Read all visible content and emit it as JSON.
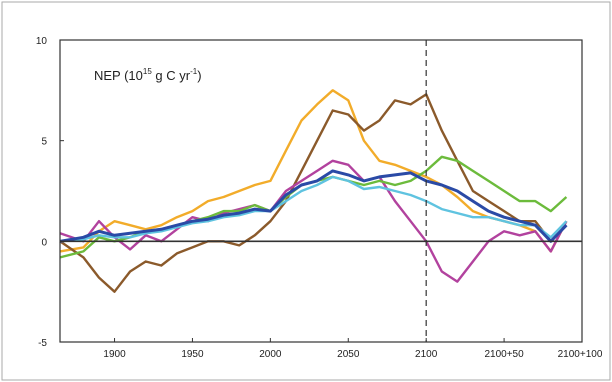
{
  "chart_data": {
    "type": "line",
    "title": "NEP (10",
    "title_exponent": "15",
    "title_rest": " g C yr",
    "title_unit_exponent": "-1",
    "title_close": ")",
    "xlabel": "",
    "ylabel": "",
    "xlim": [
      1865,
      2200
    ],
    "ylim": [
      -5,
      10
    ],
    "x_ticks": [
      {
        "value": 1900,
        "label": "1900"
      },
      {
        "value": 1950,
        "label": "1950"
      },
      {
        "value": 2000,
        "label": "2000"
      },
      {
        "value": 2050,
        "label": "2050"
      },
      {
        "value": 2100,
        "label": "2100"
      },
      {
        "value": 2150,
        "label": "2100+50"
      },
      {
        "value": 2200,
        "label": "2100+100"
      }
    ],
    "y_ticks": [
      {
        "value": -5,
        "label": "-5"
      },
      {
        "value": 0,
        "label": "0"
      },
      {
        "value": 5,
        "label": "5"
      },
      {
        "value": 10,
        "label": "10"
      }
    ],
    "reference_lines": {
      "zero_line": 0,
      "dashed_vertical_x": 2100
    },
    "grid": false,
    "legend": "none",
    "colors": {
      "frame": "#333333",
      "zero_line": "#333333",
      "dashed_line": "#333333",
      "outer_border": "#aaaaaa"
    },
    "series": [
      {
        "color": "#f2ac2a",
        "x": [
          1865,
          1880,
          1890,
          1900,
          1910,
          1920,
          1930,
          1940,
          1950,
          1960,
          1970,
          1980,
          1990,
          2000,
          2010,
          2020,
          2030,
          2040,
          2050,
          2060,
          2070,
          2080,
          2090,
          2100,
          2110,
          2120,
          2130,
          2140,
          2150,
          2160,
          2170,
          2180,
          2190
        ],
        "y": [
          -0.5,
          -0.3,
          0.5,
          1.0,
          0.8,
          0.6,
          0.8,
          1.2,
          1.5,
          2.0,
          2.2,
          2.5,
          2.8,
          3.0,
          4.5,
          6.0,
          6.8,
          7.5,
          7.0,
          5.0,
          4.0,
          3.8,
          3.5,
          3.2,
          2.8,
          2.2,
          1.5,
          1.2,
          1.0,
          0.8,
          0.5,
          -0.5,
          1.0
        ]
      },
      {
        "color": "#8b5a2b",
        "x": [
          1865,
          1880,
          1890,
          1900,
          1910,
          1920,
          1930,
          1940,
          1950,
          1960,
          1970,
          1980,
          1990,
          2000,
          2010,
          2020,
          2030,
          2040,
          2050,
          2060,
          2070,
          2080,
          2090,
          2100,
          2110,
          2120,
          2130,
          2140,
          2150,
          2160,
          2170,
          2180,
          2190
        ],
        "y": [
          0.0,
          -0.8,
          -1.8,
          -2.5,
          -1.5,
          -1.0,
          -1.2,
          -0.6,
          -0.3,
          0.0,
          0.0,
          -0.2,
          0.3,
          1.0,
          2.0,
          3.5,
          5.0,
          6.5,
          6.3,
          5.5,
          6.0,
          7.0,
          6.8,
          7.3,
          5.5,
          4.0,
          2.5,
          2.0,
          1.5,
          1.0,
          1.0,
          0.0,
          0.8
        ]
      },
      {
        "color": "#b2429e",
        "x": [
          1865,
          1880,
          1890,
          1900,
          1910,
          1920,
          1930,
          1940,
          1950,
          1960,
          1970,
          1980,
          1990,
          2000,
          2010,
          2020,
          2030,
          2040,
          2050,
          2060,
          2070,
          2080,
          2090,
          2100,
          2110,
          2120,
          2130,
          2140,
          2150,
          2160,
          2170,
          2180,
          2190
        ],
        "y": [
          0.4,
          0.0,
          1.0,
          0.2,
          -0.4,
          0.3,
          0.0,
          0.6,
          1.2,
          1.0,
          1.4,
          1.6,
          1.8,
          1.5,
          2.5,
          3.0,
          3.5,
          4.0,
          3.8,
          3.0,
          3.2,
          2.0,
          1.0,
          0.0,
          -1.5,
          -2.0,
          -1.0,
          0.0,
          0.5,
          0.3,
          0.5,
          -0.5,
          1.0
        ]
      },
      {
        "color": "#6cbb3c",
        "x": [
          1865,
          1880,
          1890,
          1900,
          1910,
          1920,
          1930,
          1940,
          1950,
          1960,
          1970,
          1980,
          1990,
          2000,
          2010,
          2020,
          2030,
          2040,
          2050,
          2060,
          2070,
          2080,
          2090,
          2100,
          2110,
          2120,
          2130,
          2140,
          2150,
          2160,
          2170,
          2180,
          2190
        ],
        "y": [
          -0.8,
          -0.5,
          0.2,
          0.0,
          0.2,
          0.5,
          0.6,
          0.8,
          1.0,
          1.2,
          1.5,
          1.5,
          1.8,
          1.5,
          2.2,
          2.8,
          3.0,
          3.2,
          3.0,
          2.8,
          3.0,
          2.8,
          3.0,
          3.5,
          4.2,
          4.0,
          3.5,
          3.0,
          2.5,
          2.0,
          2.0,
          1.5,
          2.2
        ]
      },
      {
        "color": "#5fc3e0",
        "x": [
          1865,
          1880,
          1890,
          1900,
          1910,
          1920,
          1930,
          1940,
          1950,
          1960,
          1970,
          1980,
          1990,
          2000,
          2010,
          2020,
          2030,
          2040,
          2050,
          2060,
          2070,
          2080,
          2090,
          2100,
          2110,
          2120,
          2130,
          2140,
          2150,
          2160,
          2170,
          2180,
          2190
        ],
        "y": [
          0.0,
          0.1,
          0.3,
          0.2,
          0.2,
          0.4,
          0.5,
          0.7,
          0.9,
          1.0,
          1.2,
          1.3,
          1.5,
          1.5,
          2.0,
          2.5,
          2.8,
          3.2,
          3.0,
          2.6,
          2.7,
          2.5,
          2.3,
          2.0,
          1.6,
          1.4,
          1.2,
          1.2,
          1.0,
          0.8,
          0.8,
          0.2,
          1.0
        ]
      },
      {
        "color": "#2a4aa6",
        "x": [
          1865,
          1880,
          1890,
          1900,
          1910,
          1920,
          1930,
          1940,
          1950,
          1960,
          1970,
          1980,
          1990,
          2000,
          2010,
          2020,
          2030,
          2040,
          2050,
          2060,
          2070,
          2080,
          2090,
          2100,
          2110,
          2120,
          2130,
          2140,
          2150,
          2160,
          2170,
          2180,
          2190
        ],
        "y": [
          0.0,
          0.2,
          0.5,
          0.3,
          0.4,
          0.5,
          0.6,
          0.8,
          1.0,
          1.1,
          1.3,
          1.4,
          1.6,
          1.5,
          2.3,
          2.8,
          3.0,
          3.5,
          3.3,
          3.0,
          3.2,
          3.3,
          3.4,
          3.0,
          2.8,
          2.5,
          2.0,
          1.5,
          1.2,
          1.0,
          0.8,
          0.0,
          0.8
        ]
      }
    ]
  }
}
